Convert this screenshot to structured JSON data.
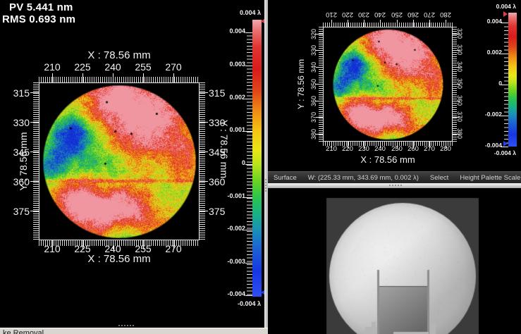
{
  "measurements": {
    "pv": "PV 5.441 nm",
    "rms": "RMS 0.693 nm"
  },
  "left_plot": {
    "x_title": "X : 78.56 mm",
    "y_title": "Y : 78.56 mm",
    "x_ticks": [
      "210",
      "225",
      "240",
      "255",
      "270"
    ],
    "y_ticks": [
      "315",
      "330",
      "345",
      "360",
      "375"
    ],
    "colorbar": {
      "unit_top": "0.004 λ",
      "unit_bottom": "-0.004 λ",
      "ticks": [
        "0.004",
        "0.003",
        "0.002",
        "0.001",
        "0",
        "-0.001",
        "-0.002",
        "-0.003",
        "-0.004"
      ]
    }
  },
  "right_plot": {
    "x_title": "X : 78.56 mm",
    "y_title": "Y : 78.56 mm",
    "x_ticks": [
      "210",
      "220",
      "230",
      "240",
      "250",
      "260",
      "270",
      "280"
    ],
    "y_ticks": [
      "320",
      "330",
      "340",
      "350",
      "360",
      "370",
      "380"
    ],
    "colorbar": {
      "unit_top": "0.004 λ",
      "unit_bottom": "-0.004 λ",
      "ticks": [
        "0.004",
        "0.002",
        "0",
        "-0.002",
        "-0.004"
      ]
    }
  },
  "status_bar": {
    "mode": "Surface",
    "cursor_readout": "W: (225.33 mm, 343.69 mm, 0.002 λ)",
    "tool": "Select",
    "right_label": "Height Palette Scale :"
  },
  "bottom_bar": {
    "partial_text": "ke Removal"
  },
  "colors": {
    "background": "#000000",
    "axis_text": "#f2f2f2",
    "panel_divider": "#d4d4d4",
    "status_bar_bg": "#2e2e2e",
    "scale_max_marker": "#e04040",
    "scale_min_marker": "#2244ee"
  },
  "surface_model": {
    "type": "heatmap-surface",
    "value_range_lambda": [
      -0.004,
      0.004
    ],
    "base": 0.12,
    "grad_v": -0.15,
    "noise_coarse": 0.16,
    "noise_med": 0.14,
    "speckle": 0.24,
    "scratch": {
      "v": 0.25,
      "w": 0.022,
      "a": 0.38
    },
    "blobs": [
      [
        0.08,
        -0.8,
        0.45,
        0.7
      ],
      [
        0.0,
        -0.6,
        0.6,
        0.33
      ],
      [
        0.55,
        -0.5,
        0.4,
        0.55
      ],
      [
        -0.62,
        -0.36,
        0.27,
        -1.05
      ],
      [
        -0.88,
        0.06,
        0.26,
        -0.85
      ],
      [
        -0.38,
        -0.06,
        0.4,
        -0.45
      ],
      [
        -0.12,
        0.28,
        0.34,
        -0.25
      ],
      [
        0.86,
        0.04,
        0.32,
        0.45
      ],
      [
        -0.42,
        0.62,
        0.4,
        1.15
      ],
      [
        -0.68,
        0.4,
        0.26,
        0.55
      ],
      [
        0.2,
        0.7,
        0.4,
        0.85
      ],
      [
        -0.04,
        0.6,
        0.3,
        0.45
      ],
      [
        0.02,
        1.02,
        0.28,
        -0.75
      ],
      [
        0.32,
        -0.18,
        0.45,
        0.12
      ],
      [
        0.58,
        0.32,
        0.26,
        -0.22
      ]
    ],
    "defect_dots": [
      [
        -0.16,
        -0.77
      ],
      [
        0.49,
        -0.62
      ],
      [
        -0.63,
        -0.43
      ],
      [
        -0.05,
        -0.39
      ],
      [
        0.16,
        -0.36
      ],
      [
        -0.18,
        0.03
      ]
    ]
  }
}
